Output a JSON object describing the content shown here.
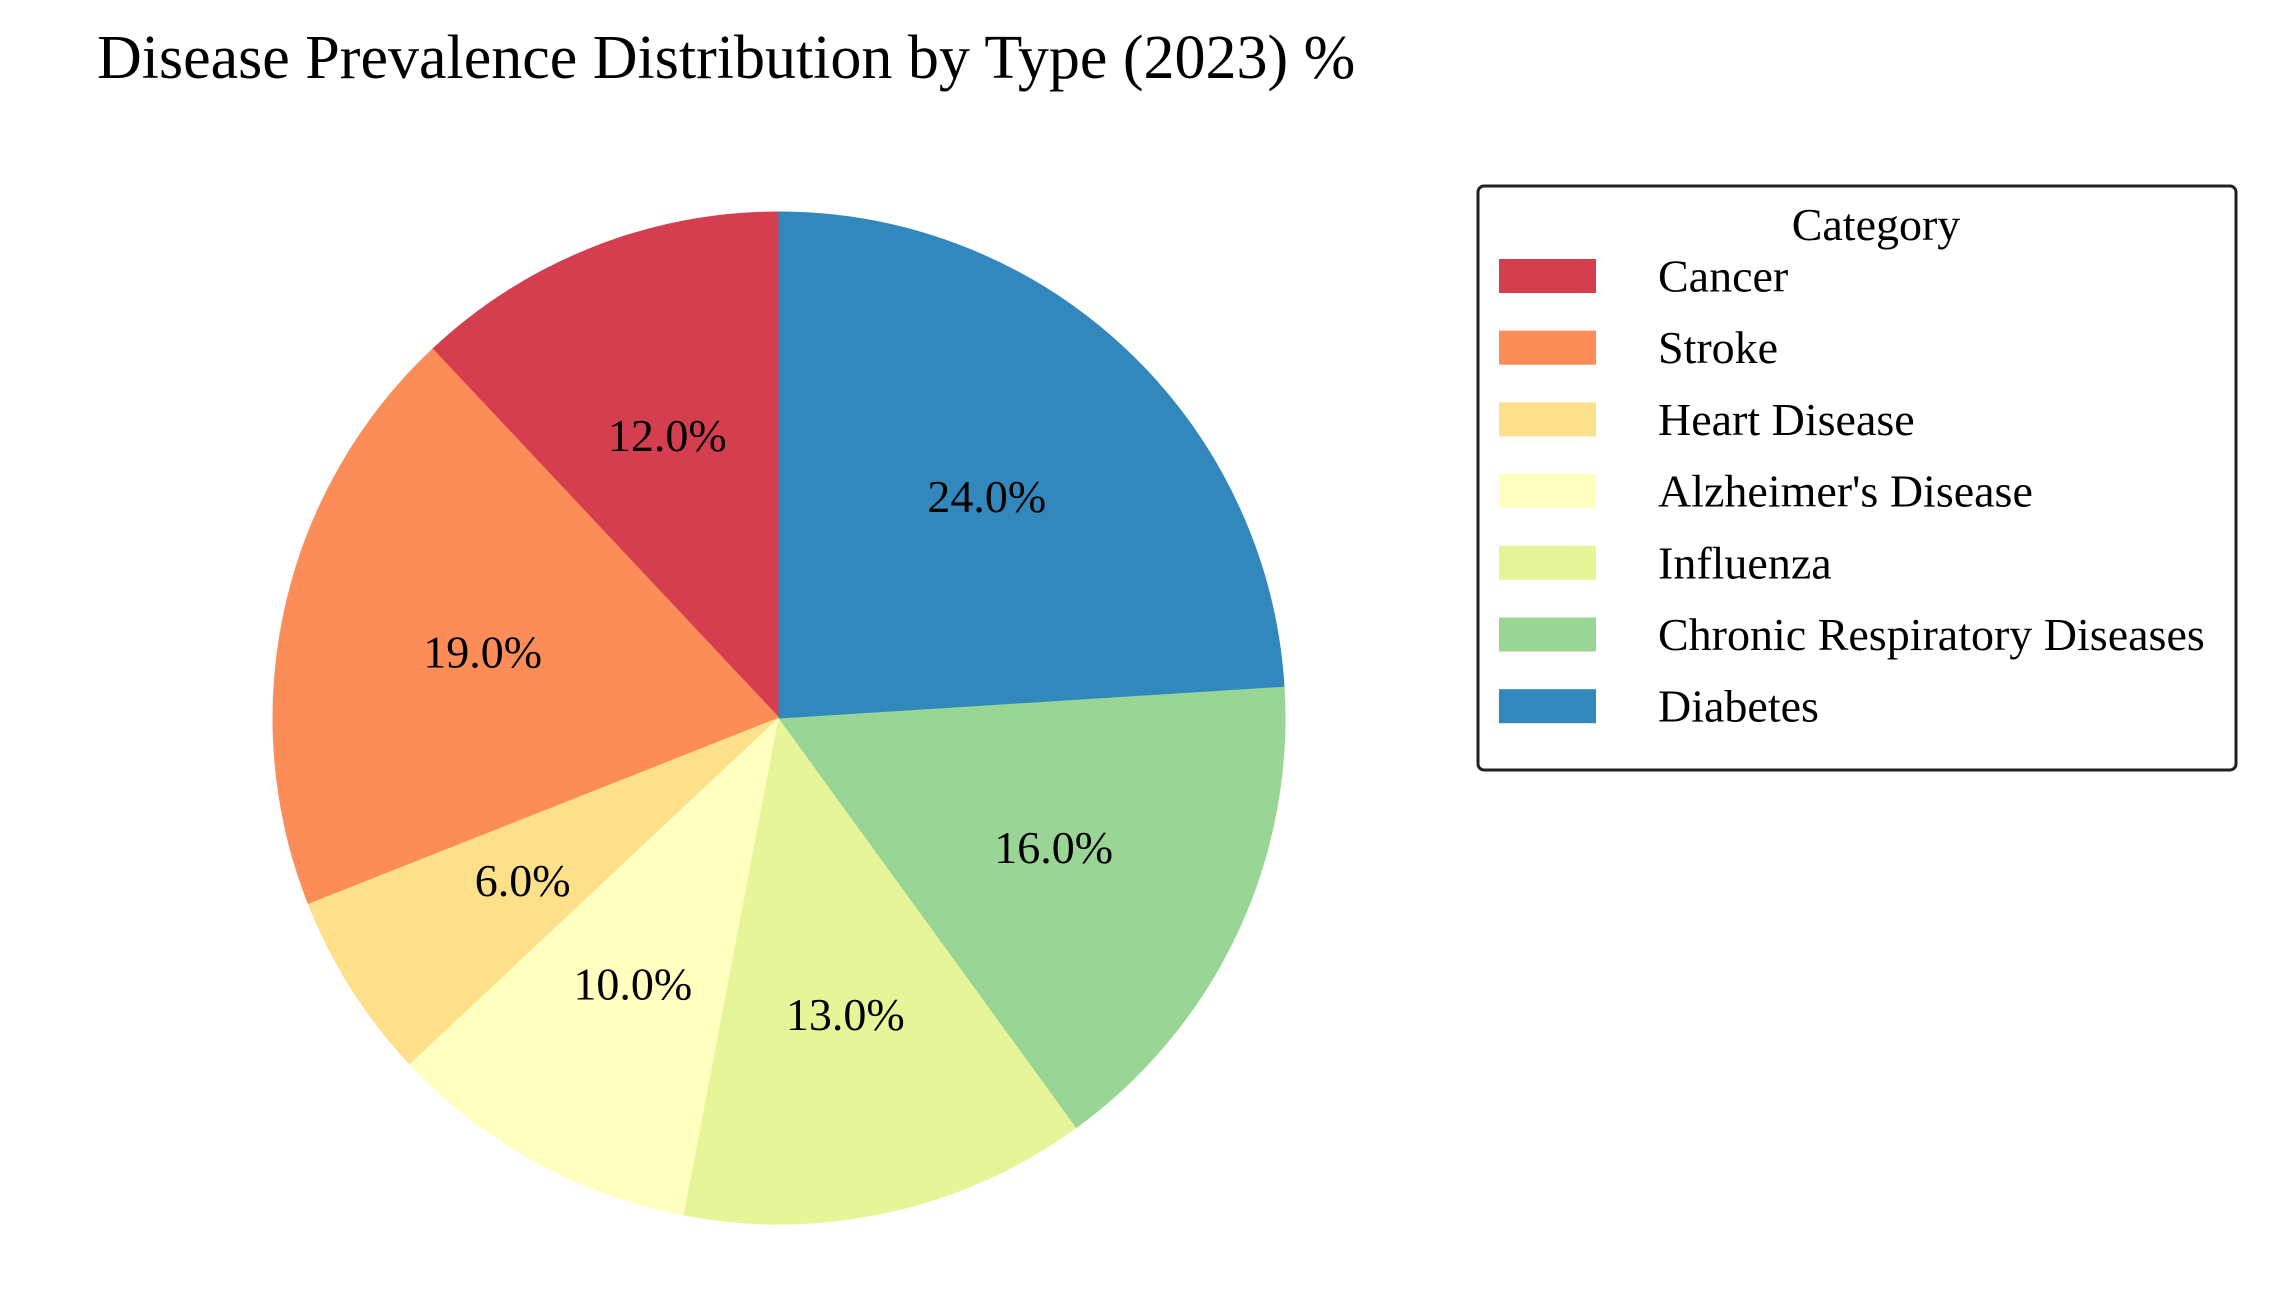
{
  "chart_data": {
    "type": "pie",
    "title": "Disease Prevalence Distribution by Type (2023) %",
    "legend_title": "Category",
    "legend_position": "right",
    "start_angle": 90,
    "direction": "counterclockwise",
    "slices": [
      {
        "label": "Cancer",
        "value": 12.0,
        "pct_label": "12.0%",
        "color": "#d53e4f"
      },
      {
        "label": "Stroke",
        "value": 19.0,
        "pct_label": "19.0%",
        "color": "#fc8d59"
      },
      {
        "label": "Heart Disease",
        "value": 6.0,
        "pct_label": "6.0%",
        "color": "#fee08b"
      },
      {
        "label": "Alzheimer's Disease",
        "value": 10.0,
        "pct_label": "10.0%",
        "color": "#ffffbf"
      },
      {
        "label": "Influenza",
        "value": 13.0,
        "pct_label": "13.0%",
        "color": "#e6f598"
      },
      {
        "label": "Chronic Respiratory Diseases",
        "value": 16.0,
        "pct_label": "16.0%",
        "color": "#99d594"
      },
      {
        "label": "Diabetes",
        "value": 24.0,
        "pct_label": "24.0%",
        "color": "#3288bd"
      }
    ]
  }
}
